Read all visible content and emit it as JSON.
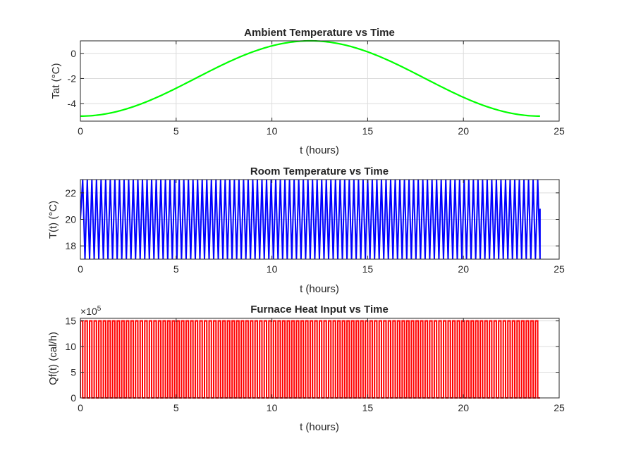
{
  "chart_data": [
    {
      "type": "line",
      "title": "Ambient Temperature vs Time",
      "xlabel": "t (hours)",
      "ylabel": "Tat (°C)",
      "xlim": [
        0,
        25
      ],
      "ylim": [
        -5.4,
        1
      ],
      "xticks": [
        0,
        5,
        10,
        15,
        20,
        25
      ],
      "yticks": [
        -4,
        -2,
        0
      ],
      "grid": true,
      "series": [
        {
          "color": "#00ff00",
          "kind": "cosine",
          "x_start": 0,
          "x_end": 24,
          "min": -5,
          "max": 1,
          "peak_x": 12
        }
      ]
    },
    {
      "type": "line",
      "title": "Room Temperature vs Time",
      "xlabel": "t (hours)",
      "ylabel": "T(t) (°C)",
      "xlim": [
        0,
        25
      ],
      "ylim": [
        17,
        23
      ],
      "xticks": [
        0,
        5,
        10,
        15,
        20,
        25
      ],
      "yticks": [
        18,
        20,
        22
      ],
      "grid": true,
      "series": [
        {
          "color": "#0000ff",
          "kind": "oscillation",
          "x_start": 0,
          "x_end": 24,
          "start_value": 20,
          "low": 17,
          "high": 23,
          "cycles": 100,
          "end_value": 20.8
        }
      ]
    },
    {
      "type": "line",
      "title": "Furnace Heat Input vs Time",
      "xlabel": "t (hours)",
      "ylabel": "Qf(t) (cal/h)",
      "xlim": [
        0,
        25
      ],
      "ylim": [
        0,
        15.5
      ],
      "xticks": [
        0,
        5,
        10,
        15,
        20,
        25
      ],
      "yticks": [
        0,
        5,
        10,
        15
      ],
      "y_exponent_label": "×10",
      "y_exponent": "5",
      "grid": true,
      "series": [
        {
          "color": "#ff0000",
          "kind": "square",
          "x_start": 0,
          "x_end": 24,
          "low": 0,
          "high": 15,
          "cycles": 100
        }
      ]
    }
  ]
}
